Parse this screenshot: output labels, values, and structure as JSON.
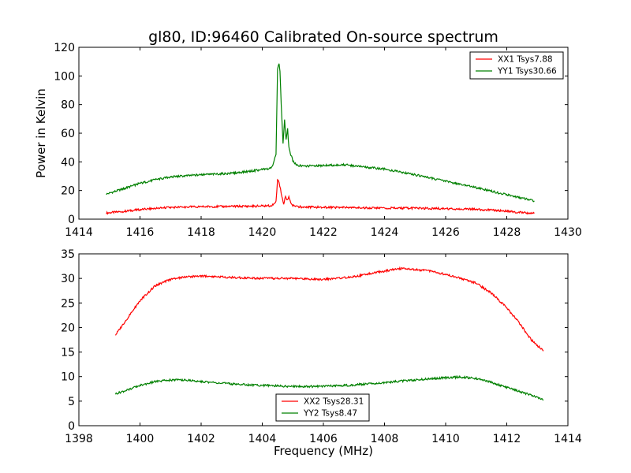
{
  "figure": {
    "title": "gl80, ID:96460 Calibrated On-source spectrum"
  },
  "chart_data": [
    {
      "type": "line",
      "title": "gl80, ID:96460 Calibrated On-source spectrum",
      "xlabel": "",
      "ylabel": "Power in Kelvin",
      "xlim": [
        1414,
        1430
      ],
      "ylim": [
        0,
        120
      ],
      "xticks": [
        1414,
        1416,
        1418,
        1420,
        1422,
        1424,
        1426,
        1428,
        1430
      ],
      "yticks": [
        0,
        20,
        40,
        60,
        80,
        100,
        120
      ],
      "grid": false,
      "legend_position": "top-right",
      "series": [
        {
          "name": "XX1 Tsys7.88",
          "color": "#ff0000",
          "x": [
            1414.9,
            1415.5,
            1416.0,
            1416.5,
            1417.0,
            1417.5,
            1418.0,
            1419.0,
            1419.8,
            1420.3,
            1420.45,
            1420.5,
            1420.55,
            1420.62,
            1420.7,
            1420.76,
            1420.82,
            1420.87,
            1420.93,
            1421.0,
            1421.1,
            1421.3,
            1422.0,
            1423.0,
            1424.0,
            1425.0,
            1426.0,
            1426.8,
            1427.5,
            1428.0,
            1428.5,
            1428.9
          ],
          "y": [
            4.3,
            5.5,
            6.7,
            7.5,
            8.2,
            8.5,
            8.7,
            8.9,
            9.1,
            9.4,
            12,
            27.5,
            26,
            18,
            10.5,
            16,
            13,
            15.5,
            11,
            9.5,
            8.8,
            8.5,
            8.3,
            8.0,
            7.8,
            7.6,
            7.3,
            7.0,
            6.3,
            5.5,
            4.6,
            4.0
          ]
        },
        {
          "name": "YY1 Tsys30.66",
          "color": "#008000",
          "x": [
            1414.9,
            1415.5,
            1416.0,
            1416.5,
            1417.0,
            1418.0,
            1419.0,
            1419.8,
            1420.3,
            1420.45,
            1420.5,
            1420.55,
            1420.58,
            1420.62,
            1420.68,
            1420.73,
            1420.78,
            1420.83,
            1420.87,
            1420.92,
            1421.0,
            1421.1,
            1421.3,
            1422.0,
            1422.7,
            1423.5,
            1424.0,
            1425.0,
            1426.0,
            1427.0,
            1428.0,
            1428.9
          ],
          "y": [
            17.5,
            21.5,
            25.0,
            27.5,
            29.5,
            31.0,
            32.0,
            34.0,
            35.5,
            45,
            105,
            108,
            103,
            80,
            53,
            69,
            55,
            63,
            50,
            46,
            41,
            38,
            37,
            37.5,
            38.0,
            36.0,
            35.0,
            31.0,
            26.5,
            22.0,
            17.0,
            12.8
          ]
        }
      ]
    },
    {
      "type": "line",
      "title": "",
      "xlabel": "Frequency (MHz)",
      "ylabel": "",
      "xlim": [
        1398,
        1414
      ],
      "ylim": [
        0,
        35
      ],
      "xticks": [
        1398,
        1400,
        1402,
        1404,
        1406,
        1408,
        1410,
        1412,
        1414
      ],
      "yticks": [
        0,
        5,
        10,
        15,
        20,
        25,
        30,
        35
      ],
      "grid": false,
      "legend_position": "bottom-center",
      "series": [
        {
          "name": "XX2 Tsys28.31",
          "color": "#ff0000",
          "x": [
            1399.2,
            1399.6,
            1400.0,
            1400.5,
            1401.0,
            1401.5,
            1402.0,
            1403.0,
            1404.0,
            1405.0,
            1406.0,
            1407.0,
            1407.5,
            1408.0,
            1408.5,
            1409.0,
            1409.5,
            1410.0,
            1410.5,
            1411.0,
            1411.5,
            1412.0,
            1412.4,
            1412.8,
            1413.2
          ],
          "y": [
            18.5,
            22.0,
            25.5,
            28.5,
            29.8,
            30.3,
            30.5,
            30.2,
            30.0,
            30.0,
            29.8,
            30.3,
            31.0,
            31.5,
            32.0,
            31.8,
            31.5,
            30.8,
            30.0,
            29.0,
            27.0,
            24.0,
            21.0,
            17.5,
            15.2
          ]
        },
        {
          "name": "YY2 Tsys8.47",
          "color": "#008000",
          "x": [
            1399.2,
            1399.6,
            1400.0,
            1400.5,
            1401.0,
            1401.5,
            1402.0,
            1403.0,
            1404.0,
            1405.0,
            1406.0,
            1407.0,
            1408.0,
            1409.0,
            1410.0,
            1410.5,
            1411.0,
            1411.5,
            1412.0,
            1412.5,
            1413.0,
            1413.2
          ],
          "y": [
            6.5,
            7.3,
            8.2,
            9.0,
            9.3,
            9.3,
            9.0,
            8.5,
            8.2,
            8.0,
            8.0,
            8.3,
            8.8,
            9.3,
            9.8,
            9.9,
            9.6,
            8.8,
            7.8,
            6.8,
            5.8,
            5.2
          ]
        }
      ]
    }
  ]
}
